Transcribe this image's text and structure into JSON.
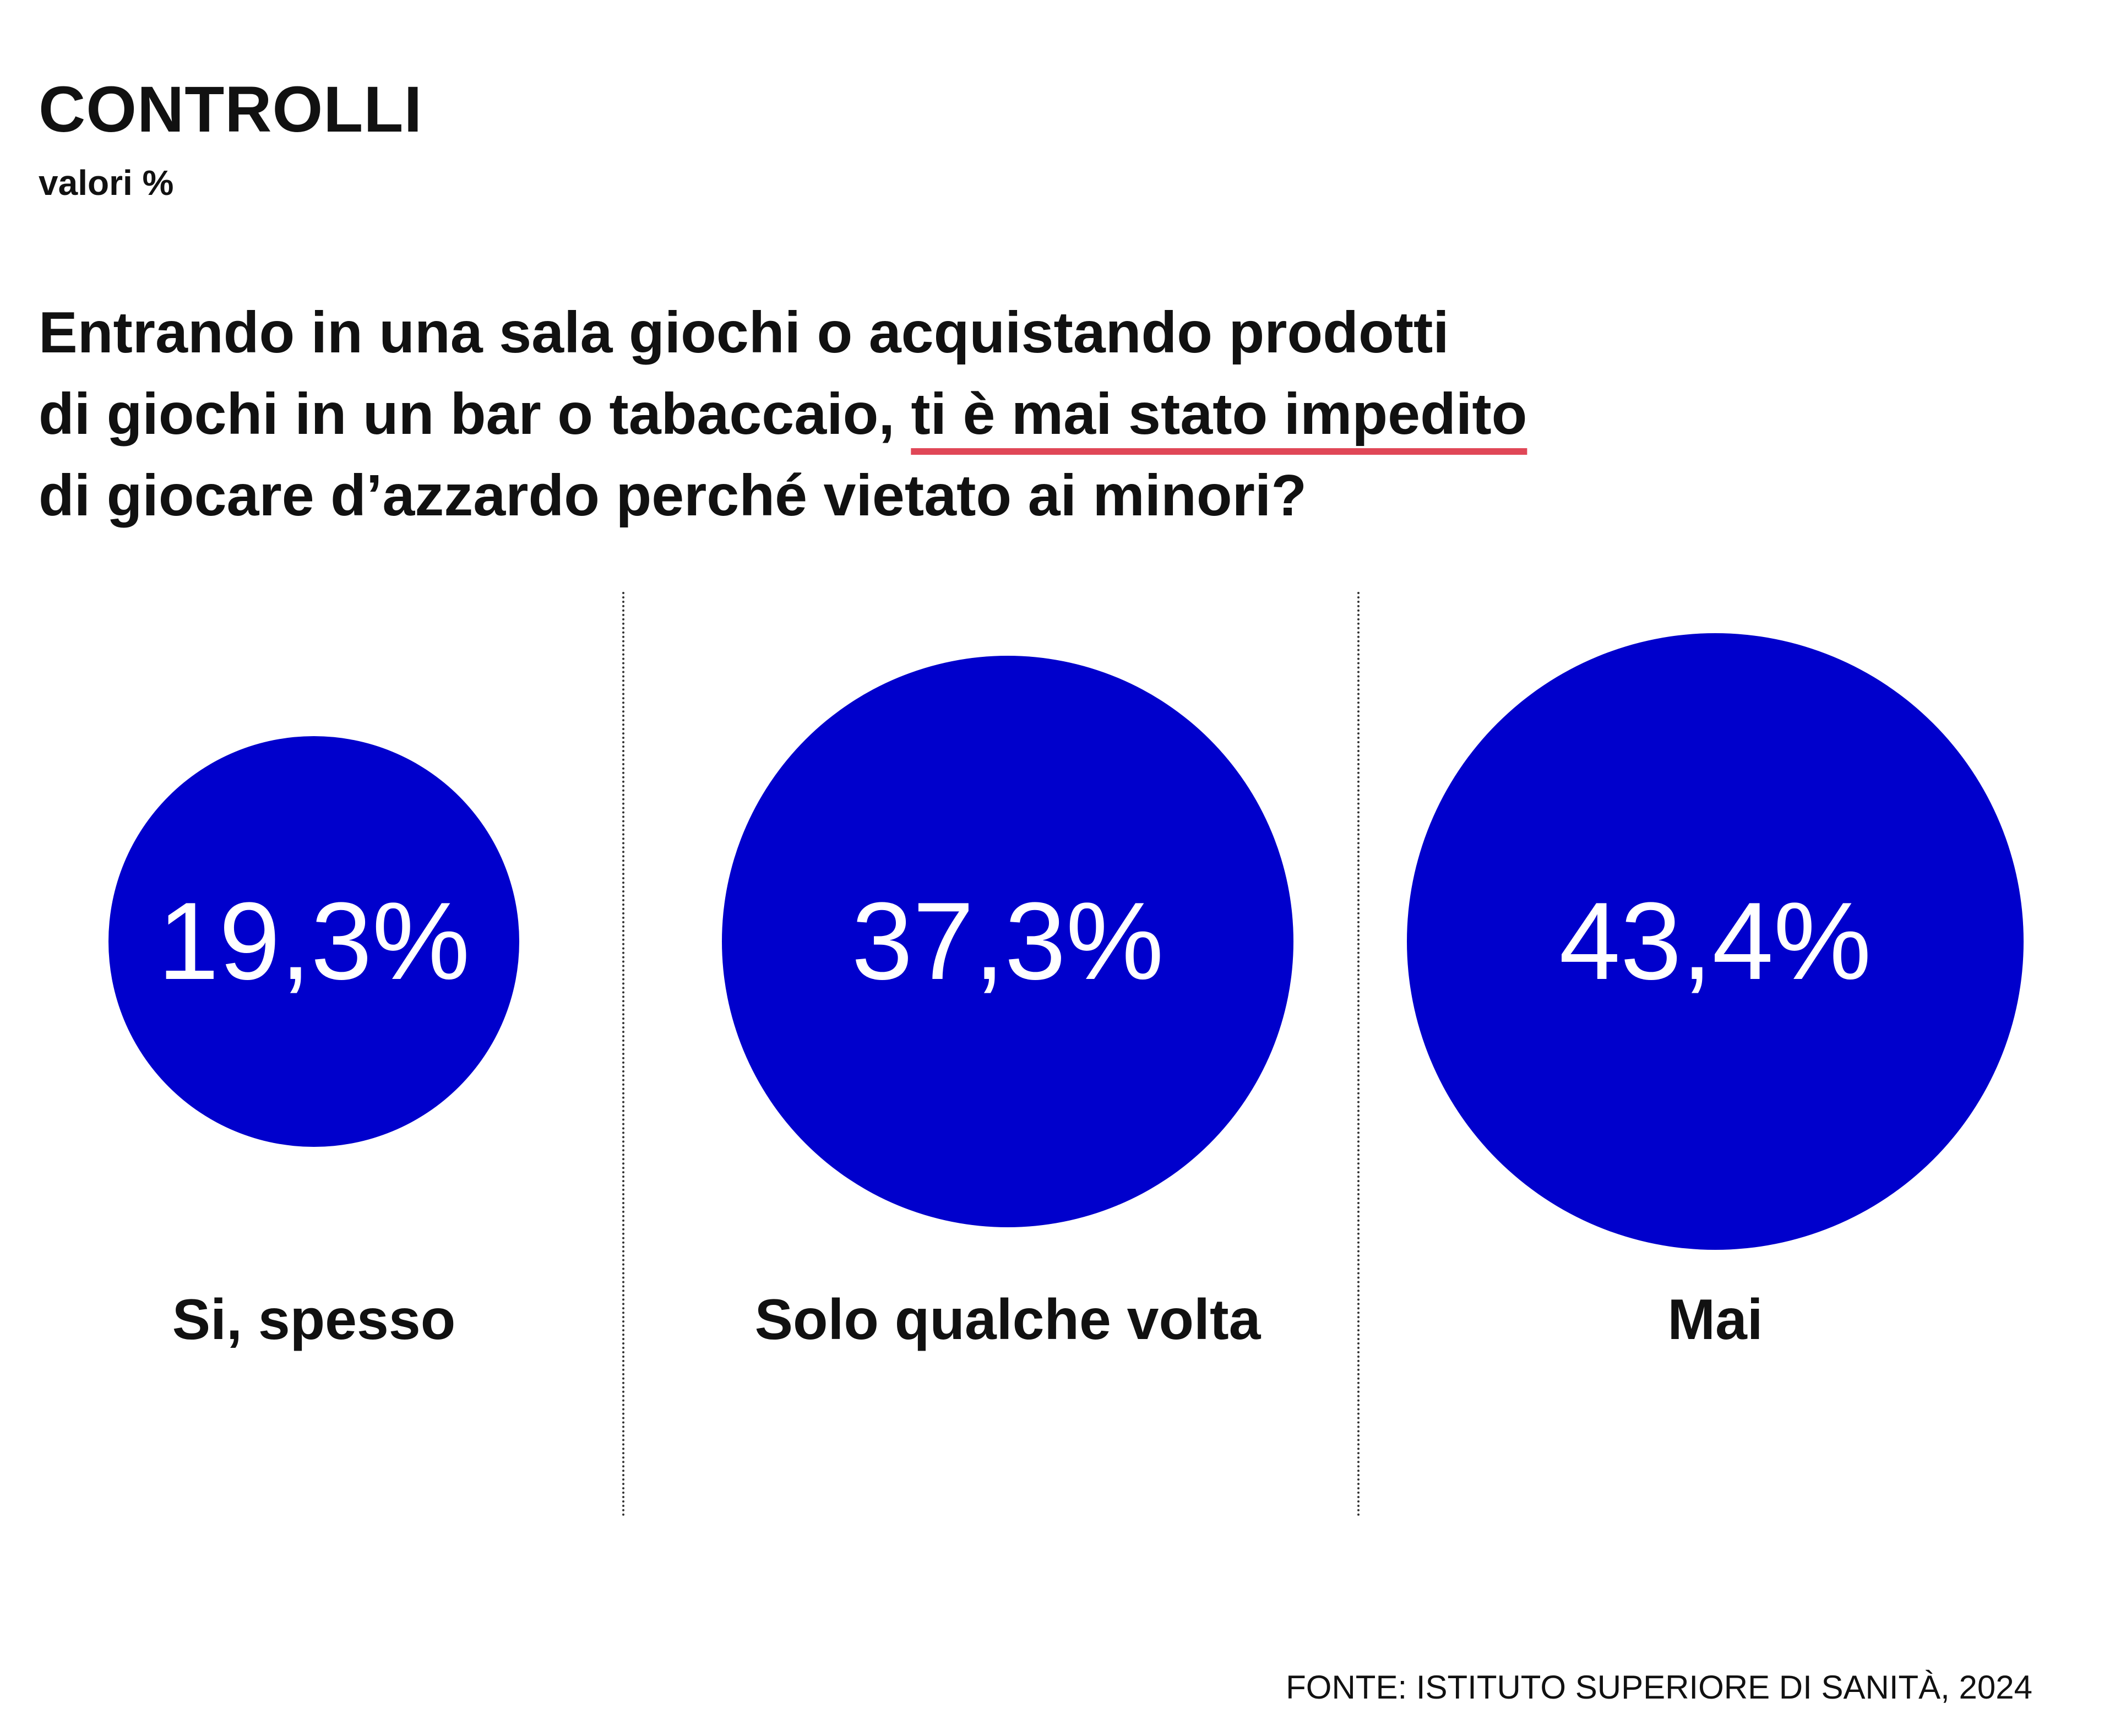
{
  "colors": {
    "bubble": "#0000cc",
    "highlight_underline": "#e04757"
  },
  "header": {
    "title": "CONTROLLI",
    "subtitle": "valori %"
  },
  "question": {
    "line1": "Entrando in una sala giochi o acquistando prodotti",
    "line2_before": "di giochi in un bar o tabaccaio, ",
    "line2_highlight": "ti è mai stato impedito",
    "line3": "di giocare d’azzardo perché vietato ai minori?"
  },
  "chart_data": {
    "type": "bubble",
    "categories": [
      "Si, spesso",
      "Solo qualche volta",
      "Mai"
    ],
    "values": [
      19.3,
      37.3,
      43.4
    ],
    "value_labels": [
      "19,3%",
      "37,3%",
      "43,4%"
    ],
    "unit": "%"
  },
  "footer": {
    "source": "FONTE: ISTITUTO SUPERIORE DI SANITÀ, 2024"
  }
}
